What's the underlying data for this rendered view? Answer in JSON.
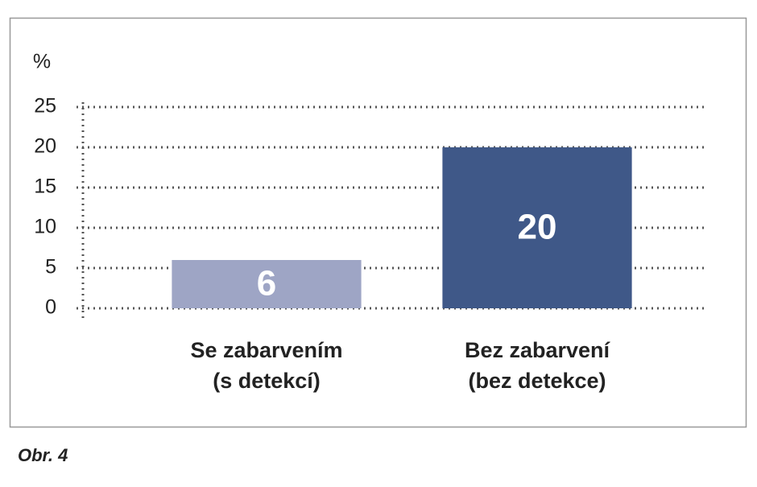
{
  "chart_data": {
    "type": "bar",
    "y_label": "%",
    "caption": "Obr. 4",
    "categories": [
      [
        "Se zabarvením",
        "(s detekcí)"
      ],
      [
        "Bez zabarvení",
        "(bez detekce)"
      ]
    ],
    "values": [
      6,
      20
    ],
    "colors": [
      "#9ea5c5",
      "#3f5888"
    ],
    "ylim": [
      0,
      25
    ],
    "yticks": [
      0,
      5,
      10,
      15,
      20,
      25
    ],
    "grid": true
  }
}
